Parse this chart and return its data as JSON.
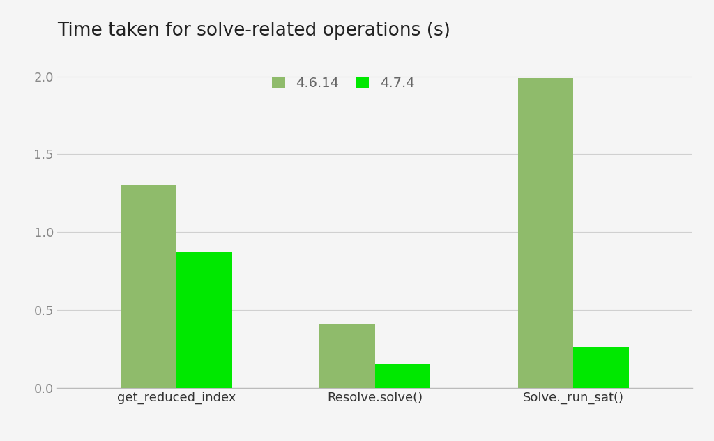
{
  "title": "Time taken for solve-related operations (s)",
  "categories": [
    "get_reduced_index",
    "Resolve.solve()",
    "Solve._run_sat()"
  ],
  "series": {
    "4.6.14": [
      1.3,
      0.41,
      1.99
    ],
    "4.7.4": [
      0.87,
      0.155,
      0.265
    ]
  },
  "color_4614": "#8fbb6b",
  "color_474": "#00e800",
  "bar_width": 0.28,
  "ylim": [
    0,
    2.15
  ],
  "yticks": [
    0,
    0.5,
    1.0,
    1.5,
    2.0
  ],
  "background_color": "#f5f5f5",
  "title_fontsize": 19,
  "tick_fontsize": 13,
  "legend_fontsize": 14,
  "grid_color": "#d0d0d0",
  "spine_color": "#bbbbbb",
  "ytick_color": "#888888",
  "xtick_color": "#333333",
  "title_color": "#222222",
  "legend_text_color": "#666666"
}
